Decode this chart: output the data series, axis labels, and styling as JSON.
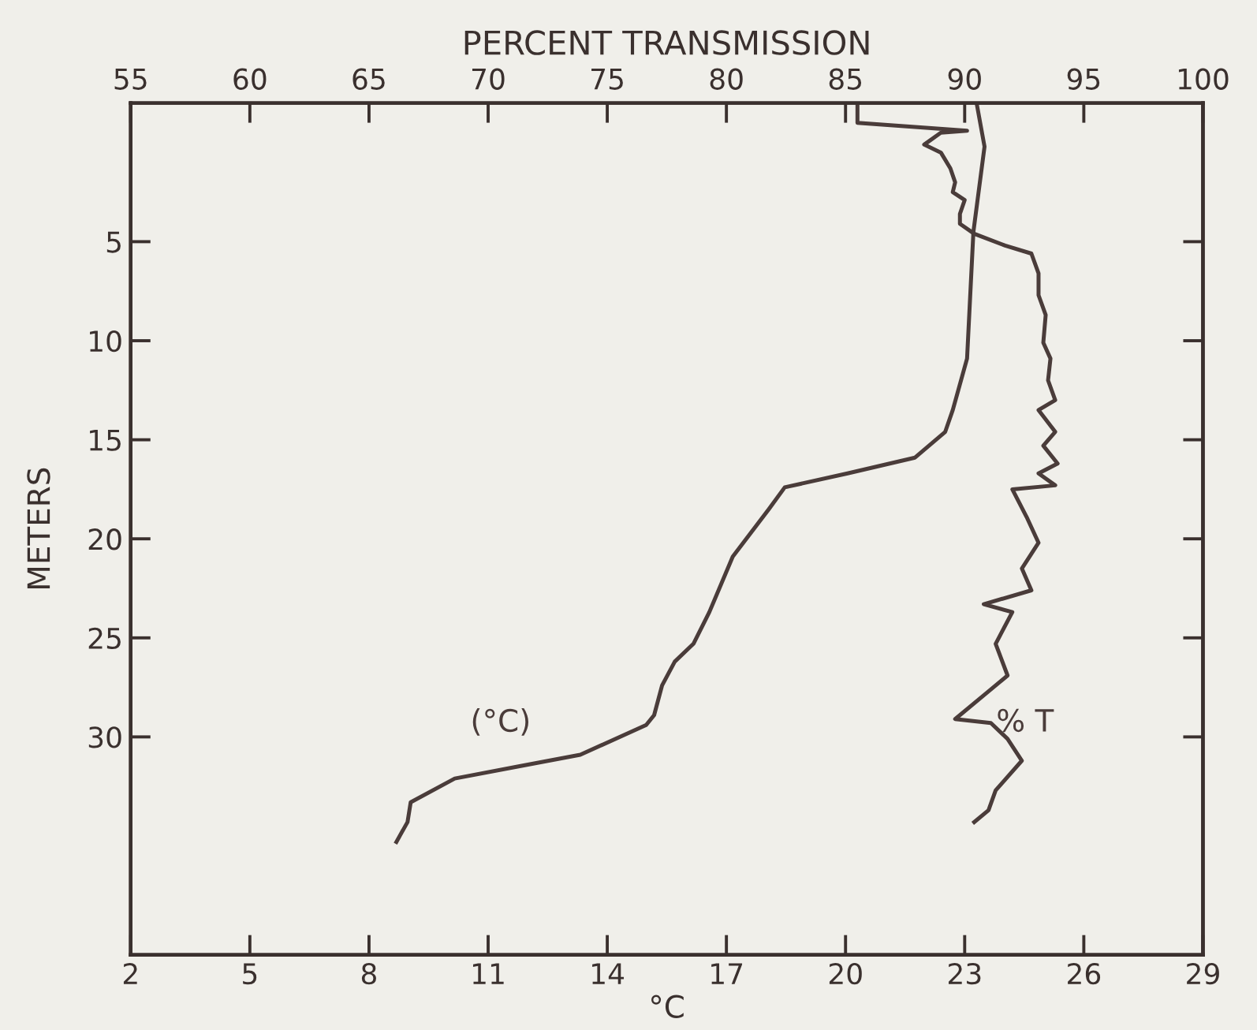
{
  "chart_data": {
    "type": "line",
    "x2label": "PERCENT TRANSMISSION",
    "xlabel": "°C",
    "ylabel": "METERS",
    "xlim": [
      2,
      29
    ],
    "xticks": [
      2,
      5,
      8,
      11,
      14,
      17,
      20,
      23,
      26,
      29
    ],
    "x2lim": [
      55,
      100
    ],
    "x2ticks": [
      55,
      60,
      65,
      70,
      75,
      80,
      85,
      90,
      95,
      100
    ],
    "ylim": [
      41,
      -2
    ],
    "yticks": [
      5,
      10,
      15,
      20,
      25,
      30
    ],
    "grid": false,
    "legend": false,
    "marker": "none",
    "line_style": "solid",
    "series": [
      {
        "name": "(°C)",
        "color": "#4a3c3a",
        "x": [
          23.3,
          23.5,
          23.22,
          23.06,
          22.7,
          22.51,
          21.75,
          20.05,
          18.47,
          18.07,
          17.16,
          16.57,
          16.17,
          15.7,
          15.38,
          15.18,
          14.98,
          13.32,
          11.74,
          10.16,
          9.05,
          8.97,
          8.69
        ],
        "values": [
          -2.0,
          0.2,
          4.5,
          10.9,
          13.5,
          14.6,
          15.9,
          16.7,
          17.4,
          18.5,
          20.9,
          23.7,
          25.3,
          26.2,
          27.4,
          28.9,
          29.4,
          30.9,
          31.5,
          32.1,
          33.3,
          34.3,
          35.3
        ]
      },
      {
        "name": "% T",
        "color": "#4a3c3a",
        "axis": "x2",
        "x": [
          85.5,
          85.5,
          90.1,
          89.0,
          88.3,
          89.0,
          89.4,
          89.6,
          89.5,
          90.0,
          89.8,
          89.8,
          90.4,
          91.7,
          92.8,
          93.1,
          93.1,
          93.4,
          93.3,
          93.6,
          93.5,
          93.8,
          93.1,
          93.8,
          93.3,
          93.9,
          93.1,
          93.8,
          92.0,
          92.6,
          93.1,
          92.4,
          92.8,
          90.8,
          92.0,
          91.3,
          91.8,
          91.0,
          89.6,
          91.1,
          91.8,
          92.4,
          91.3,
          91.0,
          90.4
        ],
        "values": [
          -2.0,
          -1.0,
          -0.6,
          -0.5,
          0.1,
          0.5,
          1.3,
          2.0,
          2.5,
          2.9,
          3.6,
          4.1,
          4.6,
          5.2,
          5.6,
          6.6,
          7.7,
          8.7,
          10.1,
          10.9,
          12.0,
          13.0,
          13.5,
          14.6,
          15.3,
          16.2,
          16.7,
          17.3,
          17.5,
          18.9,
          20.2,
          21.5,
          22.6,
          23.3,
          23.7,
          25.3,
          26.9,
          27.7,
          29.1,
          29.3,
          30.1,
          31.2,
          32.7,
          33.7,
          34.3
        ]
      }
    ]
  }
}
